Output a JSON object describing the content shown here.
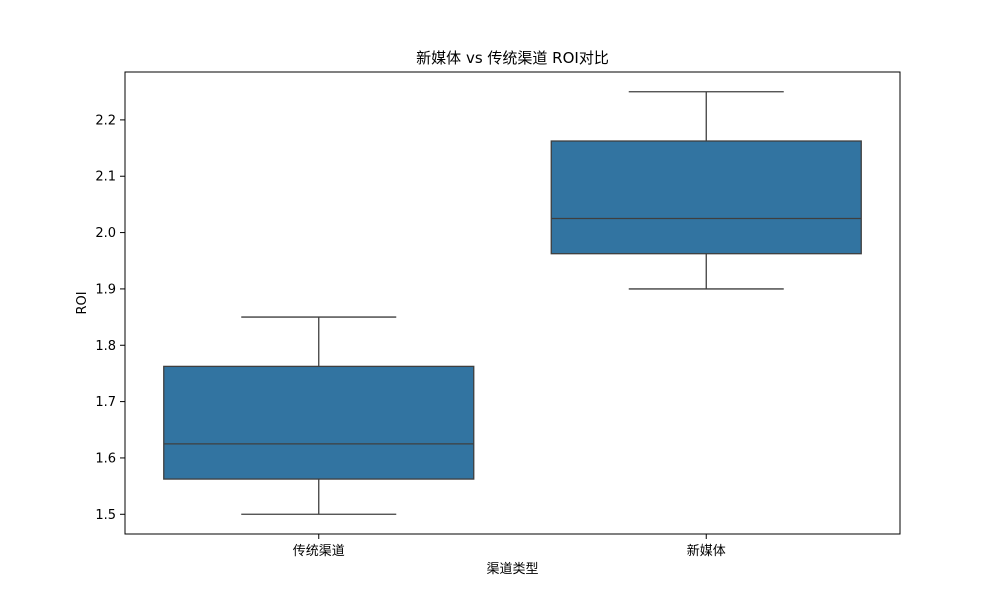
{
  "chart_data": {
    "type": "box",
    "title": "新媒体 vs 传统渠道 ROI对比",
    "xlabel": "渠道类型",
    "ylabel": "ROI",
    "ylim": [
      1.465,
      2.285
    ],
    "yticks": [
      "1.5",
      "1.6",
      "1.7",
      "1.8",
      "1.9",
      "2.0",
      "2.1",
      "2.2"
    ],
    "categories": [
      "传统渠道",
      "新媒体"
    ],
    "boxes": [
      {
        "category": "传统渠道",
        "min": 1.5,
        "q1": 1.5625,
        "median": 1.625,
        "q3": 1.7625,
        "max": 1.85
      },
      {
        "category": "新媒体",
        "min": 1.9,
        "q1": 1.9625,
        "median": 2.025,
        "q3": 2.1625,
        "max": 2.25
      }
    ],
    "box_color": "#3274a1",
    "line_color": "#3f3f3f",
    "grid": false
  }
}
